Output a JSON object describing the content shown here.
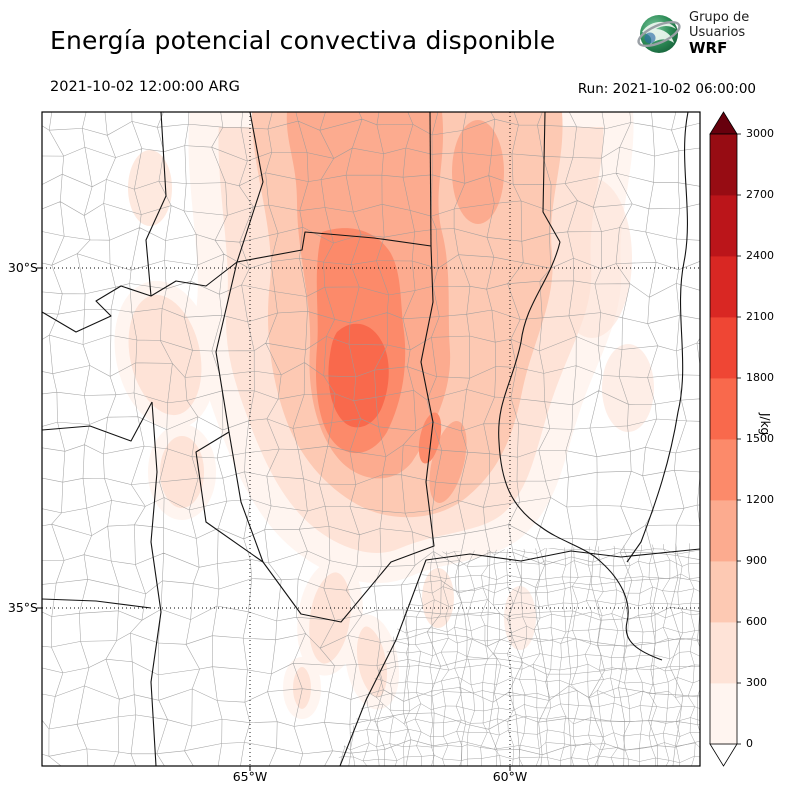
{
  "header": {
    "title": "Energía potencial convectiva disponible",
    "logo": {
      "line1": "Grupo de",
      "line2": "Usuarios",
      "line3": "WRF"
    },
    "valid_time": "2021-10-02 12:00:00 ARG",
    "run_label": "Run: 2021-10-02 06:00:00"
  },
  "axes": {
    "lat_labels": [
      "30°S",
      "35°S"
    ],
    "lon_labels": [
      "65°W",
      "60°W"
    ]
  },
  "chart_data": {
    "type": "heatmap",
    "title": "Energía potencial convectiva disponible",
    "variable": "CAPE (convective available potential energy)",
    "units": "J/kg",
    "valid_time": "2021-10-02 12:00:00 ARG",
    "model_run": "2021-10-02 06:00:00",
    "model": "WRF (Grupo de Usuarios WRF)",
    "region": "central-northern Argentina with province and department boundaries",
    "lon_range_deg_w": [
      69.0,
      56.3
    ],
    "lat_range_deg_s": [
      27.7,
      37.3
    ],
    "lat_ticks": [
      "30°S",
      "35°S"
    ],
    "lon_ticks": [
      "65°W",
      "60°W"
    ],
    "graticule": "dotted black lines at labeled ticks",
    "colorbar": {
      "orientation": "vertical",
      "position": "right",
      "label": "J/kg",
      "extend": "both",
      "levels": [
        0,
        300,
        600,
        900,
        1200,
        1500,
        1800,
        2100,
        2400,
        2700,
        3000
      ],
      "colors": [
        "#fff5f0",
        "#fee3d7",
        "#fdc9b3",
        "#fcab8f",
        "#fc8a6a",
        "#f9694c",
        "#ef4634",
        "#d92723",
        "#bb151a",
        "#970c13"
      ],
      "below_color": "#ffffff",
      "above_color": "#67000d"
    },
    "field_features": [
      {
        "area": "Sierras de Córdoba / central Córdoba (~64.5°W, 31.5°S)",
        "value_J_per_kg": "1500–1800",
        "note": "field maximum"
      },
      {
        "area": "NNE–SSW band from Santiago del Estero into Córdoba",
        "value_J_per_kg": "600–1200"
      },
      {
        "area": "broad wash north of ~33°S between ~66°W and ~59°W reaching top of map",
        "value_J_per_kg": "300–600"
      },
      {
        "area": "scattered pale patches west (San Juan/San Luis), south (La Pampa) and east (Entre Ríos)",
        "value_J_per_kg": "0–300"
      },
      {
        "area": "far west, far south and most of Buenos Aires (lower right)",
        "value_J_per_kg": "0"
      }
    ]
  }
}
